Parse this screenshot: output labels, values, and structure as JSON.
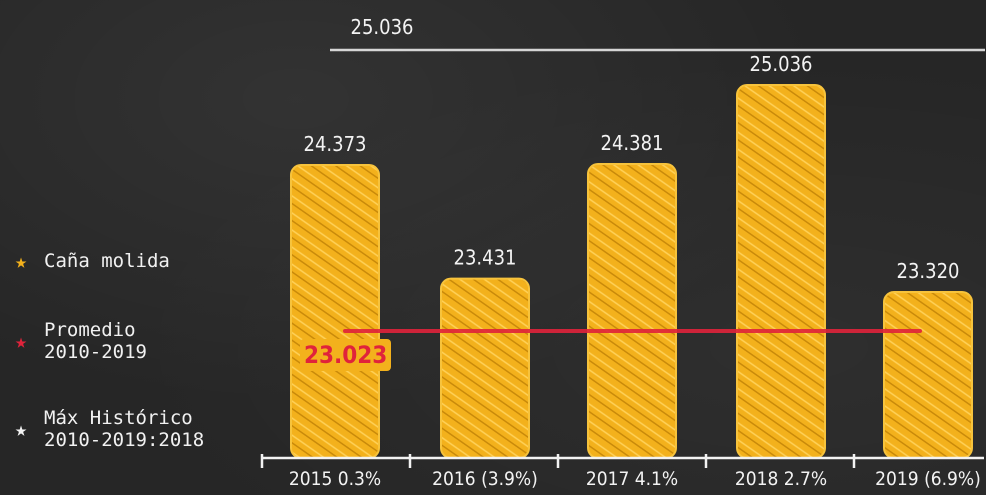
{
  "chart_data": {
    "type": "bar",
    "categories": [
      "2015 0.3%",
      "2016 (3.9%)",
      "2017 4.1%",
      "2018 2.7%",
      "2019 (6.9%)"
    ],
    "series": [
      {
        "name": "Caña molida",
        "values": [
          24373,
          23431,
          24381,
          25036,
          23320
        ],
        "value_labels": [
          "24.373",
          "23.431",
          "24.381",
          "25.036",
          "23.320"
        ],
        "color": "#f3b11c"
      }
    ],
    "reference_lines": [
      {
        "name": "Promedio 2010-2019",
        "value": 23023,
        "label": "23.023",
        "color": "#e0233b"
      },
      {
        "name": "Máx Histórico 2010-2019:2018",
        "value": 25036,
        "label": "25.036",
        "color": "#f3f3f3"
      }
    ],
    "legend_position": "left",
    "grid": false
  },
  "legend": {
    "items": [
      {
        "label": "Caña molida",
        "icon": "star-icon",
        "color": "#f3b11c"
      },
      {
        "label": "Promedio\n2010-2019",
        "icon": "star-icon",
        "color": "#e0233b"
      },
      {
        "label": "Máx Histórico\n2010-2019:2018",
        "icon": "star-icon",
        "color": "#f3f3f3"
      }
    ]
  }
}
